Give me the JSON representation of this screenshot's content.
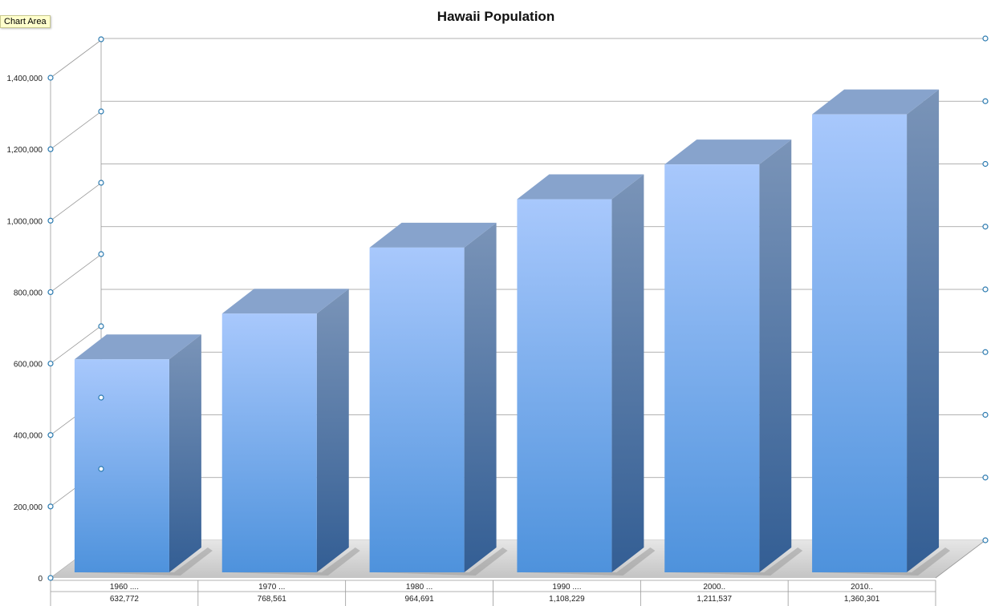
{
  "tooltip": {
    "label": "Chart Area"
  },
  "chart_data": {
    "type": "bar",
    "style": "3d-column",
    "title": "Hawaii Population",
    "categories": [
      "1960 ....",
      "1970 ...",
      "1980 ...",
      "1990 ....",
      "2000..",
      "2010.."
    ],
    "table_values": [
      "632,772",
      "768,561",
      "964,691",
      "1,108,229",
      "1,211,537",
      "1,360,301"
    ],
    "series": [
      {
        "values": [
          632772,
          768561,
          964691,
          1108229,
          1211537,
          1360301
        ]
      }
    ],
    "ylim": [
      0,
      1400000
    ],
    "yticks": [
      0,
      200000,
      400000,
      600000,
      800000,
      1000000,
      1200000,
      1400000
    ],
    "ytick_labels": [
      "0",
      "200,000",
      "400,000",
      "600,000",
      "800,000",
      "1,000,000",
      "1,200,000",
      "1,400,000"
    ],
    "grid": true,
    "data_table": true,
    "colors": {
      "bar_light": "#a8c8fc",
      "bar_dark": "#4e92dc",
      "bar_top": "#87a3cc",
      "bar_side_light": "#7a94b8",
      "bar_side_dark": "#335e94",
      "grid": "#999999",
      "handle": "#2a7ab0"
    }
  }
}
